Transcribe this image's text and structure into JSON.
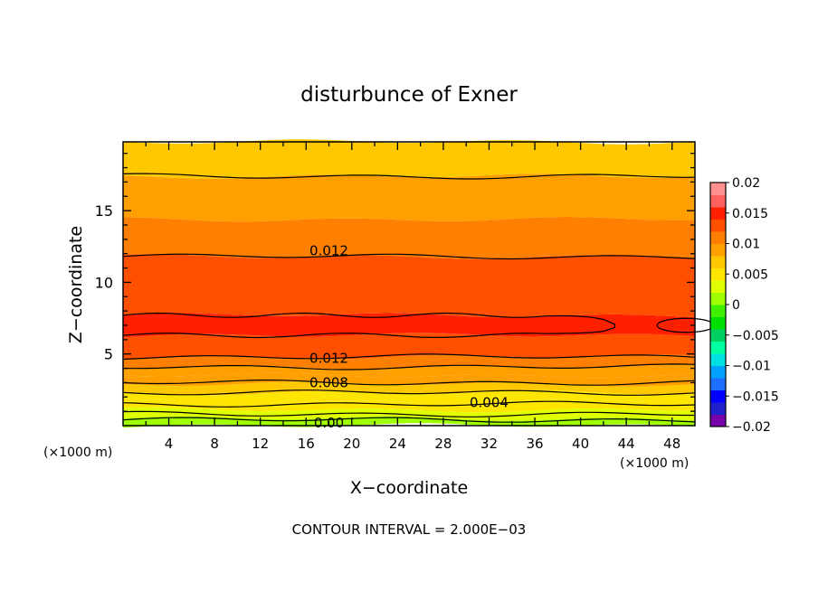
{
  "chart_data": {
    "type": "heatmap",
    "title": "disturbunce of Exner",
    "xlabel": "X−coordinate",
    "ylabel": "Z−coordinate",
    "x_unit_left": "(×1000 m)",
    "x_unit_right": "(×1000 m)",
    "xlim": [
      0,
      50
    ],
    "ylim": [
      0,
      19.8
    ],
    "x_ticks": [
      4,
      8,
      12,
      16,
      20,
      24,
      28,
      32,
      36,
      40,
      44,
      48
    ],
    "x_tick_labels": [
      "4",
      "8",
      "12",
      "16",
      "20",
      "24",
      "28",
      "32",
      "36",
      "40",
      "44",
      "48"
    ],
    "y_ticks": [
      5,
      10,
      15
    ],
    "y_tick_labels": [
      "5",
      "10",
      "15"
    ],
    "footer": "CONTOUR INTERVAL = 2.000E−03",
    "colorbar": {
      "levels": [
        -0.02,
        -0.015,
        -0.01,
        -0.005,
        0,
        0.005,
        0.01,
        0.015,
        0.02
      ],
      "labels": [
        "0.02",
        "0.015",
        "0.01",
        "0.005",
        "0",
        "−0.005",
        "−0.01",
        "−0.015",
        "−0.02"
      ],
      "colors_low_to_high": [
        "#7700aa",
        "#2020cc",
        "#0000ff",
        "#1e6eff",
        "#00a0ff",
        "#00e0e0",
        "#00ffa0",
        "#00d060",
        "#00e000",
        "#40f000",
        "#a0ff00",
        "#e0ff00",
        "#ffe600",
        "#ffc800",
        "#ffa000",
        "#ff8000",
        "#ff5000",
        "#ff2000",
        "#ff6060",
        "#ff9090"
      ]
    },
    "bands": [
      {
        "z_bottom": 0.0,
        "z_top": 0.5,
        "value": 0.001
      },
      {
        "z_bottom": 0.5,
        "z_top": 1.1,
        "value": 0.003
      },
      {
        "z_bottom": 1.1,
        "z_top": 1.7,
        "value": 0.004
      },
      {
        "z_bottom": 1.7,
        "z_top": 2.3,
        "value": 0.0055
      },
      {
        "z_bottom": 2.3,
        "z_top": 2.9,
        "value": 0.007
      },
      {
        "z_bottom": 2.9,
        "z_top": 3.5,
        "value": 0.008
      },
      {
        "z_bottom": 3.5,
        "z_top": 4.1,
        "value": 0.009
      },
      {
        "z_bottom": 4.1,
        "z_top": 4.8,
        "value": 0.011
      },
      {
        "z_bottom": 4.8,
        "z_top": 6.3,
        "value": 0.013
      },
      {
        "z_bottom": 6.3,
        "z_top": 7.7,
        "value": 0.0155
      },
      {
        "z_bottom": 7.7,
        "z_top": 11.8,
        "value": 0.013
      },
      {
        "z_bottom": 11.8,
        "z_top": 14.4,
        "value": 0.011
      },
      {
        "z_bottom": 14.4,
        "z_top": 17.4,
        "value": 0.0095
      },
      {
        "z_bottom": 17.4,
        "z_top": 19.8,
        "value": 0.0075
      }
    ],
    "contours": [
      {
        "value": 0.0,
        "z": 0.4
      },
      {
        "value": 0.002,
        "z": 0.8
      },
      {
        "value": 0.004,
        "z": 1.5
      },
      {
        "value": 0.006,
        "z": 2.3
      },
      {
        "value": 0.008,
        "z": 3.0
      },
      {
        "value": 0.01,
        "z": 4.1
      },
      {
        "value": 0.012,
        "z": 4.8
      },
      {
        "value": 0.012,
        "z": 11.8
      },
      {
        "value": 0.01,
        "z": 17.4
      }
    ],
    "max_contour_line": {
      "value": 0.014,
      "z_bottom": 6.3,
      "z_top": 7.7
    },
    "contour_labels": [
      {
        "text": "0.012",
        "x": 18,
        "z": 12.2
      },
      {
        "text": "0.012",
        "x": 18,
        "z": 4.7
      },
      {
        "text": "0.008",
        "x": 18,
        "z": 3.0
      },
      {
        "text": "0.004",
        "x": 32,
        "z": 1.6
      },
      {
        "text": "0.00",
        "x": 18,
        "z": 0.2
      }
    ]
  }
}
